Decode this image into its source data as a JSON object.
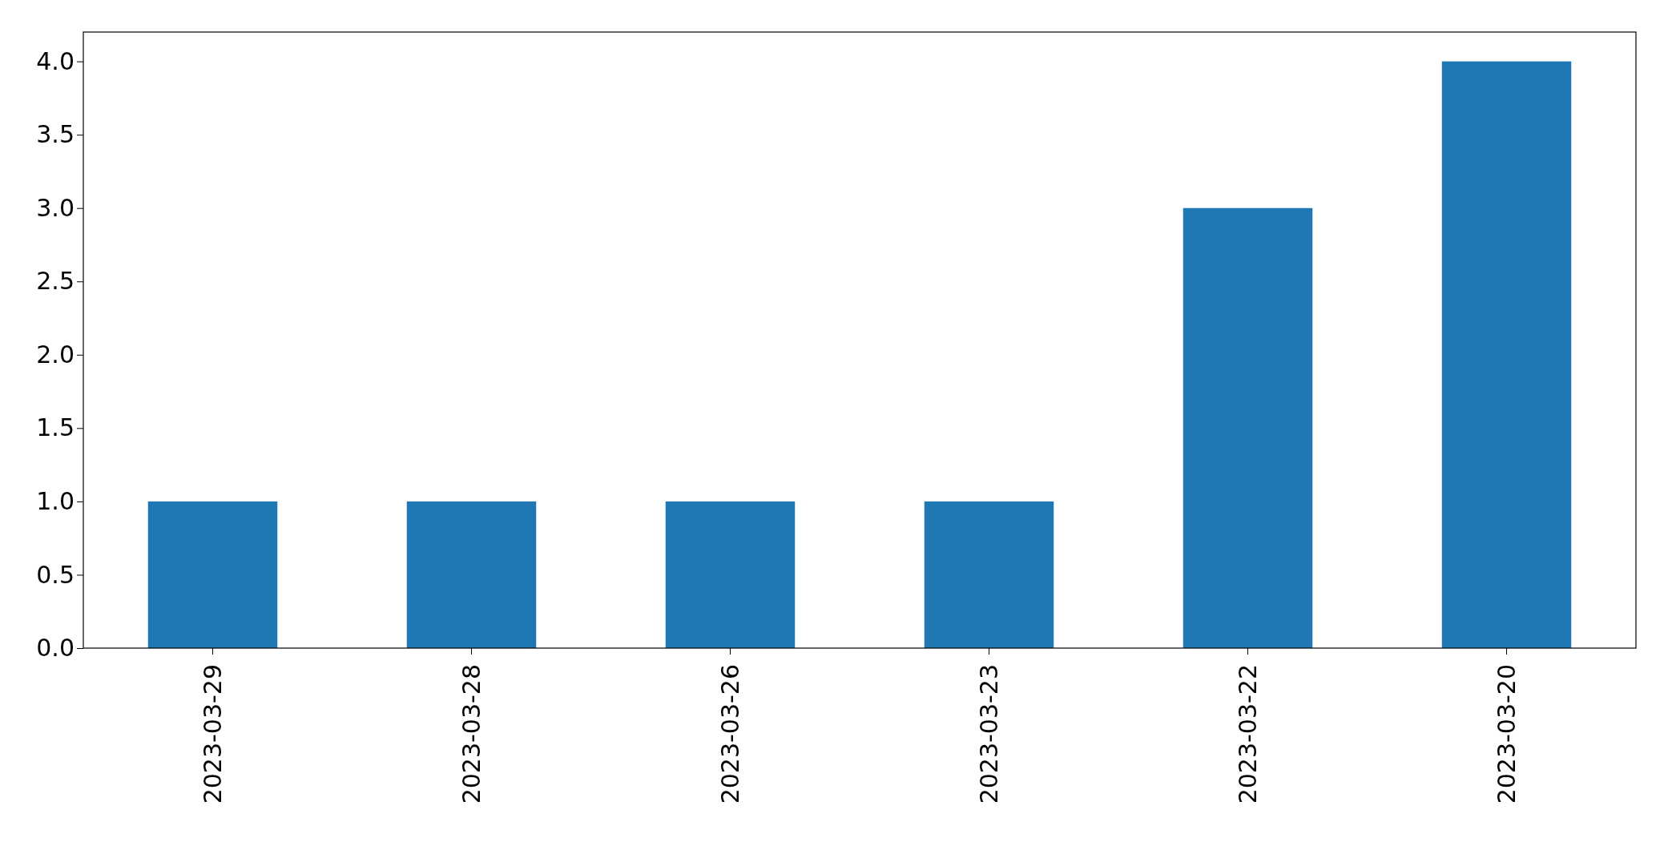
{
  "chart_data": {
    "type": "bar",
    "categories": [
      "2023-03-29",
      "2023-03-28",
      "2023-03-26",
      "2023-03-23",
      "2023-03-22",
      "2023-03-20"
    ],
    "values": [
      1,
      1,
      1,
      1,
      3,
      4
    ],
    "color": "#1f77b4",
    "ylim": [
      0,
      4.2
    ],
    "yticks": [
      {
        "value": 0,
        "label": "0.0"
      },
      {
        "value": 0.5,
        "label": "0.5"
      },
      {
        "value": 1,
        "label": "1.0"
      },
      {
        "value": 1.5,
        "label": "1.5"
      },
      {
        "value": 2,
        "label": "2.0"
      },
      {
        "value": 2.5,
        "label": "2.5"
      },
      {
        "value": 3,
        "label": "3.0"
      },
      {
        "value": 3.5,
        "label": "3.5"
      },
      {
        "value": 4,
        "label": "4.0"
      }
    ],
    "grid": false
  }
}
